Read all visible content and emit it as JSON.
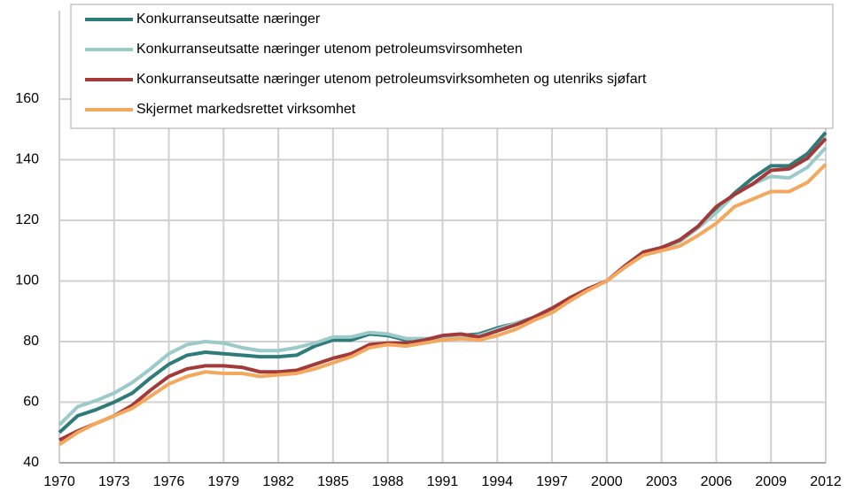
{
  "chart_data": {
    "type": "line",
    "x": [
      1970,
      1971,
      1972,
      1973,
      1974,
      1975,
      1976,
      1977,
      1978,
      1979,
      1980,
      1981,
      1982,
      1983,
      1984,
      1985,
      1986,
      1987,
      1988,
      1989,
      1990,
      1991,
      1992,
      1993,
      1994,
      1995,
      1996,
      1997,
      1998,
      1999,
      2000,
      2001,
      2002,
      2003,
      2004,
      2005,
      2006,
      2007,
      2008,
      2009,
      2010,
      2011,
      2012
    ],
    "series": [
      {
        "name": "Konkurranseutsatte næringer",
        "color": "#2e7b7a",
        "values": [
          50,
          55.5,
          57.5,
          60,
          63,
          68,
          72.5,
          75.5,
          76.5,
          76,
          75.5,
          75,
          75,
          75.5,
          78.5,
          80.5,
          80.5,
          82.5,
          82,
          80.5,
          80.5,
          81.5,
          82,
          82.5,
          84.5,
          86,
          88,
          90.5,
          94,
          97.5,
          100,
          105,
          109.5,
          111,
          113.5,
          118,
          123,
          129,
          134,
          138,
          138,
          142,
          149
        ]
      },
      {
        "name": "Konkurranseutsatte næringer utenom petroleumsvirsomheten",
        "color": "#9cc9c9",
        "values": [
          52.5,
          58.5,
          60.5,
          63,
          66.5,
          71,
          76,
          79,
          80,
          79.5,
          78,
          77,
          77,
          78,
          79.5,
          81.5,
          81.5,
          83,
          82.5,
          81,
          81,
          81,
          81.5,
          82,
          84,
          86,
          88,
          90.5,
          94,
          97.5,
          100,
          105,
          109,
          110.5,
          113,
          117.5,
          122.5,
          128.5,
          132,
          134.5,
          134,
          137.5,
          144
        ]
      },
      {
        "name": "Konkurranseutsatte næringer utenom petroleumsvirksomheten og utenriks sjøfart",
        "color": "#a33a3a",
        "values": [
          47.5,
          50.5,
          53,
          55.5,
          59,
          64,
          68.5,
          71,
          72,
          72,
          71.5,
          70,
          70,
          70.5,
          72.5,
          74.5,
          76,
          79,
          79.5,
          79.5,
          80.5,
          82,
          82.5,
          81.5,
          83.5,
          85.5,
          88,
          91,
          94.5,
          97.5,
          100,
          105,
          109.5,
          111,
          113.5,
          118,
          124.5,
          128.5,
          132,
          136.5,
          137,
          140.5,
          147
        ]
      },
      {
        "name": "Skjermet markedsrettet virksomhet",
        "color": "#f4a85e",
        "values": [
          46,
          50,
          53,
          55.5,
          58,
          62,
          66,
          68.5,
          70,
          69.5,
          69.5,
          68.5,
          69,
          69.5,
          71,
          73,
          75,
          78,
          79,
          78.5,
          79.5,
          80.5,
          81,
          80.5,
          82,
          84,
          87,
          89.5,
          93.5,
          97,
          100,
          104.5,
          108.5,
          110,
          111.5,
          115,
          119,
          124.5,
          127,
          129.5,
          129.5,
          132.5,
          138.5
        ]
      }
    ],
    "xlim": [
      1970,
      2012
    ],
    "xticks": [
      1970,
      1973,
      1976,
      1979,
      1982,
      1985,
      1988,
      1991,
      1994,
      1997,
      2000,
      2003,
      2006,
      2009,
      2012
    ],
    "ylim": [
      40,
      160
    ],
    "yticks": [
      40,
      60,
      80,
      100,
      120,
      140,
      160
    ],
    "grid": true
  }
}
